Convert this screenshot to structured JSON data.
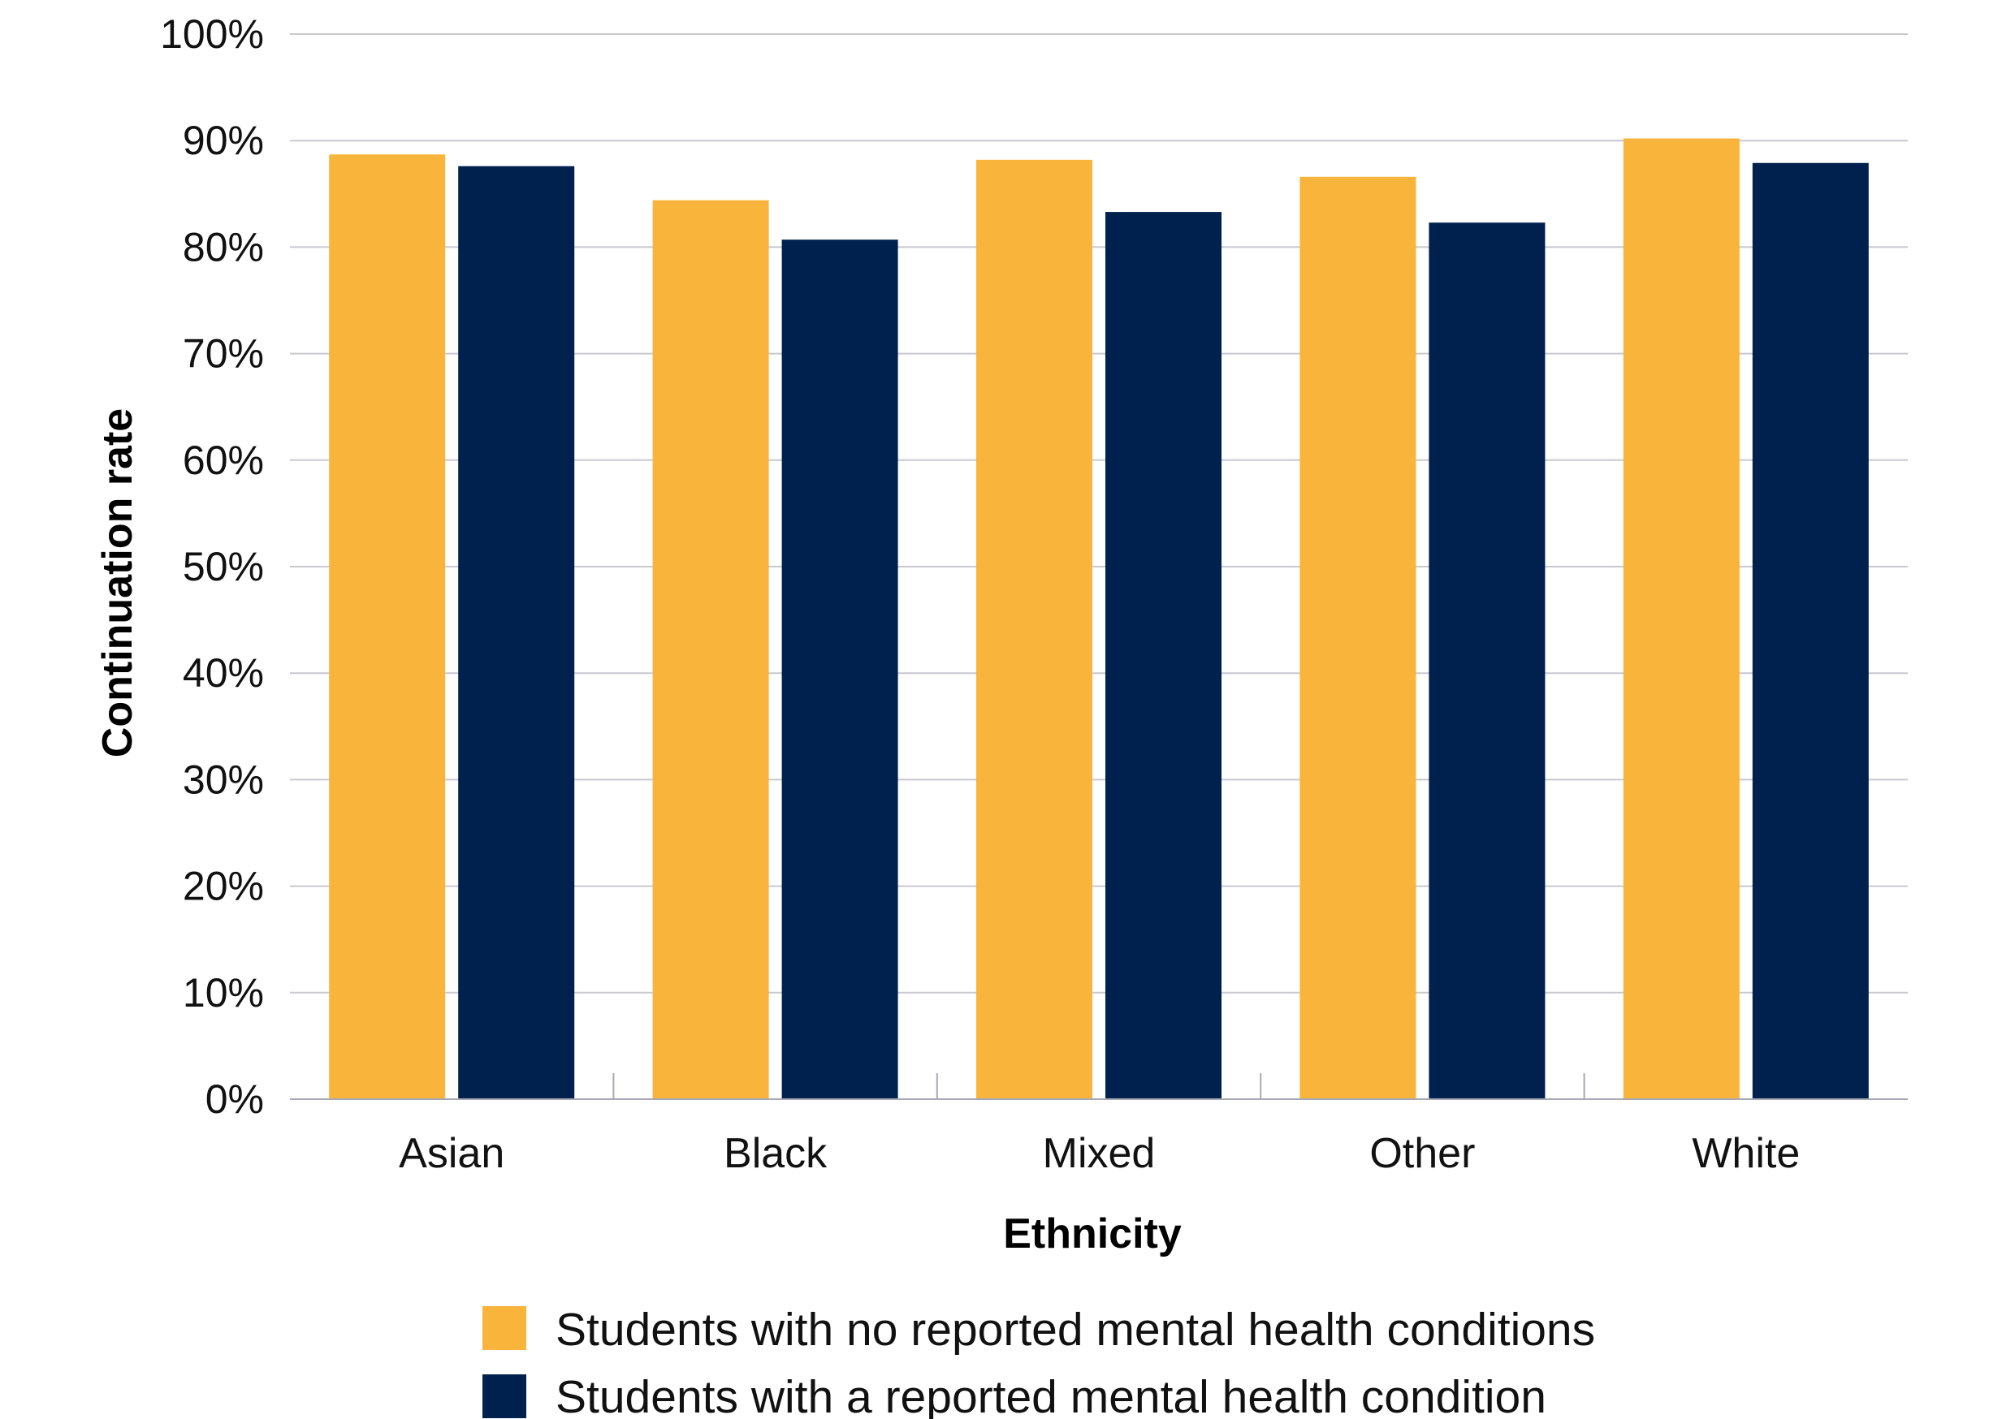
{
  "chart_data": {
    "type": "bar",
    "categories": [
      "Asian",
      "Black",
      "Mixed",
      "Other",
      "White"
    ],
    "series": [
      {
        "name": "Students with no reported mental health conditions",
        "values": [
          88.7,
          84.4,
          88.2,
          86.6,
          90.2
        ]
      },
      {
        "name": "Students with a reported mental health condition",
        "values": [
          87.6,
          80.7,
          83.3,
          82.3,
          87.9
        ]
      }
    ],
    "xlabel": "Ethnicity",
    "ylabel": "Continuation rate",
    "ylim": [
      0,
      100
    ],
    "yticks": [
      "0%",
      "10%",
      "20%",
      "30%",
      "40%",
      "50%",
      "60%",
      "70%",
      "80%",
      "90%",
      "100%"
    ],
    "grid": true,
    "legend_position": "bottom",
    "colors": {
      "series_1": "#F9B43B",
      "series_2": "#00204E",
      "grid": "#C8C8D0",
      "axis": "#A8A8B4"
    }
  }
}
